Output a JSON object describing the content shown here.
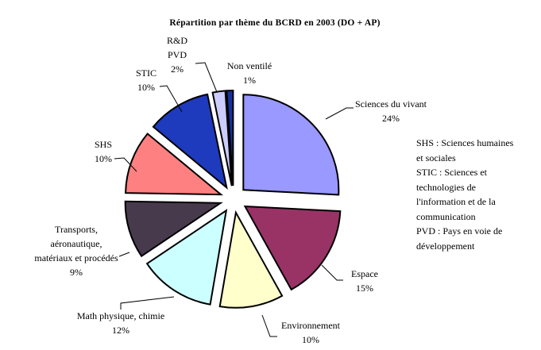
{
  "title": "Répartition par thème du BCRD en 2003 (DO + AP)",
  "chart_data": {
    "type": "pie",
    "title": "Répartition par thème du BCRD en 2003 (DO + AP)",
    "exploded": true,
    "start_angle": "12-oclock",
    "direction": "clockwise",
    "outline_color": "#000000",
    "background_color": "#ffffff",
    "slices": [
      {
        "name": "Sciences du vivant",
        "pct": 24,
        "color": "#9999FF",
        "label_lines": [
          "Sciences du vivant",
          "24%"
        ]
      },
      {
        "name": "Espace",
        "pct": 15,
        "color": "#993366",
        "label_lines": [
          "Espace",
          "15%"
        ]
      },
      {
        "name": "Environnement",
        "pct": 10,
        "color": "#FFFFCC",
        "label_lines": [
          "Environnement",
          "10%"
        ]
      },
      {
        "name": "Math physique, chimie",
        "pct": 12,
        "color": "#CCFFFF",
        "label_lines": [
          "Math physique, chimie",
          "12%"
        ]
      },
      {
        "name": "Transports, aéronautique, matériaux et procédés",
        "pct": 9,
        "color": "#483A4D",
        "label_lines": [
          "Transports,",
          "aéronautique,",
          "matériaux et procédés",
          "9%"
        ]
      },
      {
        "name": "SHS",
        "pct": 10,
        "color": "#FF8080",
        "label_lines": [
          "SHS",
          "10%"
        ]
      },
      {
        "name": "STIC",
        "pct": 10,
        "color": "#1E3ABD",
        "label_lines": [
          "STIC",
          "10%"
        ]
      },
      {
        "name": "R&D PVD",
        "pct": 2,
        "color": "#CCCCFF",
        "label_lines": [
          "R&D",
          "PVD",
          "2%"
        ]
      },
      {
        "name": "Non ventilé",
        "pct": 1,
        "color": "#14319E",
        "label_lines": [
          "Non ventilé",
          "1%"
        ]
      }
    ],
    "legend_note_lines": [
      "SHS : Sciences humaines",
      "et sociales",
      "STIC : Sciences et",
      "technologies de",
      "l'information et de la",
      "communication",
      "PVD : Pays en voie de",
      "développement"
    ]
  }
}
